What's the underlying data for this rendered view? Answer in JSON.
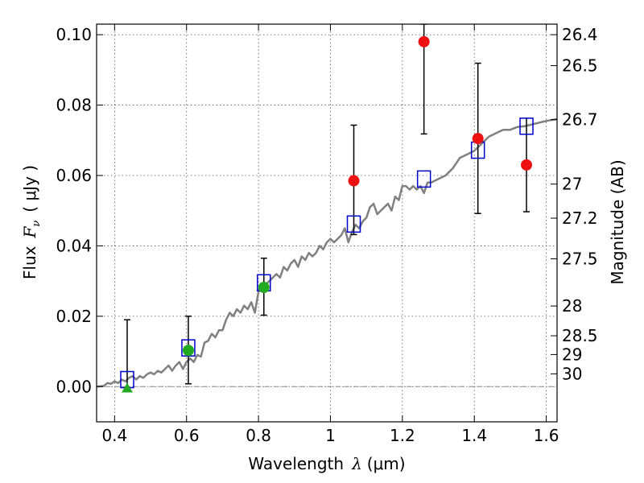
{
  "chart_data": {
    "type": "scatter",
    "xlabel_text": "Wavelength",
    "xlabel_symbol": "λ",
    "xlabel_unit": "(μm)",
    "ylabel_text": "Flux",
    "ylabel_symbol": "F",
    "ylabel_subscript": "ν",
    "ylabel_unit": "( μJy )",
    "ylabel_right": "Magnitude (AB)",
    "xlim": [
      0.35,
      1.63
    ],
    "ylim": [
      -0.01,
      0.103
    ],
    "x_ticks": [
      {
        "value": 0.4,
        "label": "0.4"
      },
      {
        "value": 0.6,
        "label": "0.6"
      },
      {
        "value": 0.8,
        "label": "0.8"
      },
      {
        "value": 1.0,
        "label": "1"
      },
      {
        "value": 1.2,
        "label": "1.2"
      },
      {
        "value": 1.4,
        "label": "1.4"
      },
      {
        "value": 1.6,
        "label": "1.6"
      }
    ],
    "y_ticks": [
      {
        "value": 0.0,
        "label": "0.00"
      },
      {
        "value": 0.02,
        "label": "0.02"
      },
      {
        "value": 0.04,
        "label": "0.04"
      },
      {
        "value": 0.06,
        "label": "0.06"
      },
      {
        "value": 0.08,
        "label": "0.08"
      },
      {
        "value": 0.1,
        "label": "0.10"
      }
    ],
    "right_ticks": [
      {
        "mag": 26.4,
        "label": "26.4"
      },
      {
        "mag": 26.5,
        "label": "26.5"
      },
      {
        "mag": 26.7,
        "label": "26.7"
      },
      {
        "mag": 27.0,
        "label": "27"
      },
      {
        "mag": 27.2,
        "label": "27.2"
      },
      {
        "mag": 27.5,
        "label": "27.5"
      },
      {
        "mag": 28.0,
        "label": "28"
      },
      {
        "mag": 28.5,
        "label": "28.5"
      },
      {
        "mag": 29.0,
        "label": "29"
      },
      {
        "mag": 30.0,
        "label": "30"
      }
    ],
    "grid": true,
    "zero_line": true,
    "series": [
      {
        "kind": "line",
        "color": "#808080",
        "x": [
          0.35,
          0.37,
          0.38,
          0.39,
          0.4,
          0.41,
          0.42,
          0.43,
          0.44,
          0.45,
          0.46,
          0.47,
          0.48,
          0.49,
          0.5,
          0.51,
          0.52,
          0.53,
          0.54,
          0.55,
          0.56,
          0.57,
          0.58,
          0.59,
          0.6,
          0.61,
          0.62,
          0.63,
          0.64,
          0.65,
          0.66,
          0.67,
          0.68,
          0.69,
          0.7,
          0.71,
          0.72,
          0.73,
          0.74,
          0.75,
          0.76,
          0.77,
          0.78,
          0.79,
          0.8,
          0.81,
          0.82,
          0.83,
          0.84,
          0.85,
          0.86,
          0.87,
          0.88,
          0.89,
          0.9,
          0.91,
          0.92,
          0.93,
          0.94,
          0.95,
          0.96,
          0.97,
          0.98,
          0.99,
          1.0,
          1.01,
          1.02,
          1.03,
          1.04,
          1.05,
          1.06,
          1.07,
          1.08,
          1.09,
          1.1,
          1.11,
          1.12,
          1.13,
          1.14,
          1.15,
          1.16,
          1.17,
          1.18,
          1.19,
          1.2,
          1.21,
          1.22,
          1.23,
          1.24,
          1.25,
          1.26,
          1.27,
          1.28,
          1.3,
          1.32,
          1.34,
          1.36,
          1.38,
          1.4,
          1.42,
          1.44,
          1.46,
          1.48,
          1.5,
          1.52,
          1.54,
          1.56,
          1.58,
          1.6,
          1.63
        ],
        "y": [
          0.0,
          0.0002,
          0.001,
          0.0008,
          0.0015,
          0.001,
          0.002,
          0.0015,
          0.0025,
          0.003,
          0.002,
          0.003,
          0.0025,
          0.0035,
          0.004,
          0.0035,
          0.0045,
          0.004,
          0.005,
          0.006,
          0.0045,
          0.006,
          0.007,
          0.005,
          0.007,
          0.008,
          0.007,
          0.009,
          0.0085,
          0.0125,
          0.013,
          0.015,
          0.014,
          0.016,
          0.016,
          0.019,
          0.021,
          0.02,
          0.022,
          0.021,
          0.023,
          0.022,
          0.024,
          0.021,
          0.027,
          0.028,
          0.029,
          0.03,
          0.031,
          0.032,
          0.031,
          0.034,
          0.033,
          0.035,
          0.036,
          0.034,
          0.037,
          0.036,
          0.038,
          0.037,
          0.038,
          0.04,
          0.039,
          0.041,
          0.042,
          0.041,
          0.042,
          0.043,
          0.045,
          0.041,
          0.044,
          0.046,
          0.045,
          0.047,
          0.048,
          0.051,
          0.052,
          0.049,
          0.05,
          0.051,
          0.052,
          0.05,
          0.054,
          0.053,
          0.057,
          0.057,
          0.056,
          0.057,
          0.056,
          0.057,
          0.055,
          0.058,
          0.058,
          0.059,
          0.06,
          0.062,
          0.065,
          0.066,
          0.067,
          0.069,
          0.071,
          0.072,
          0.073,
          0.073,
          0.0738,
          0.074,
          0.0745,
          0.075,
          0.0755,
          0.076
        ]
      },
      {
        "kind": "model_squares",
        "color": "#0000cc",
        "x": [
          0.435,
          0.605,
          0.815,
          1.065,
          1.26,
          1.41,
          1.545
        ],
        "y": [
          0.002,
          0.011,
          0.0295,
          0.0462,
          0.059,
          0.0672,
          0.074
        ]
      },
      {
        "kind": "errorbars",
        "color": "#000000",
        "bars": [
          {
            "x": 0.435,
            "low": -0.001,
            "high": 0.019
          },
          {
            "x": 0.605,
            "low": 0.0008,
            "high": 0.02
          },
          {
            "x": 0.815,
            "low": 0.0203,
            "high": 0.0365
          },
          {
            "x": 1.065,
            "low": 0.0432,
            "high": 0.0743
          },
          {
            "x": 1.26,
            "low": 0.0718,
            "high": 0.103
          },
          {
            "x": 1.41,
            "low": 0.0492,
            "high": 0.0919
          },
          {
            "x": 1.545,
            "low": 0.0497,
            "high": 0.0763
          }
        ]
      },
      {
        "kind": "points_circle",
        "color": "#22aa22",
        "x": [
          0.605,
          0.815
        ],
        "y": [
          0.0103,
          0.0282
        ]
      },
      {
        "kind": "points_triangle",
        "color": "#22aa22",
        "x": [
          0.435
        ],
        "y": [
          -0.0005
        ]
      },
      {
        "kind": "points_circle",
        "color": "#ee1111",
        "x": [
          1.065,
          1.26,
          1.41,
          1.545
        ],
        "y": [
          0.0585,
          0.098,
          0.0705,
          0.063
        ]
      }
    ]
  }
}
